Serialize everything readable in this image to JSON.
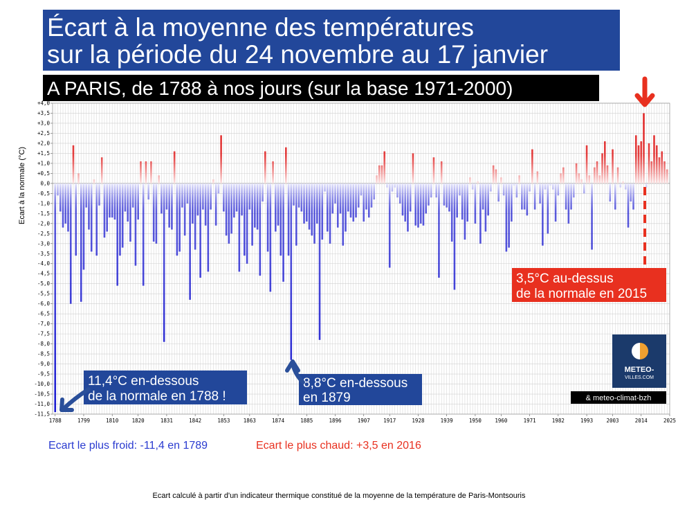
{
  "chart_data": {
    "type": "bar",
    "title": [
      "Écart à la moyenne des températures",
      "sur la période du 24 novembre au 17 janvier"
    ],
    "subtitle": "A PARIS, de 1788 à nos jours (sur la base 1971-2000)",
    "y_label": "Ecart à la normale (°C)",
    "colors": {
      "positive": "#e02020",
      "negative": "#1a1ad0"
    },
    "grid": true,
    "xlim": [
      1787,
      2025
    ],
    "xticks": [
      1788,
      1799,
      1810,
      1820,
      1831,
      1842,
      1853,
      1863,
      1874,
      1885,
      1896,
      1907,
      1917,
      1928,
      1939,
      1950,
      1960,
      1971,
      1982,
      1993,
      2003,
      2014,
      2025
    ],
    "ylim": [
      -11.5,
      4
    ],
    "yticks": [
      {
        "value": 4,
        "label": "+4,0"
      },
      {
        "value": 3.5,
        "label": "+3,5"
      },
      {
        "value": 3,
        "label": "+3,0"
      },
      {
        "value": 2.5,
        "label": "+2,5"
      },
      {
        "value": 2,
        "label": "+2,0"
      },
      {
        "value": 1.5,
        "label": "+1,5"
      },
      {
        "value": 1,
        "label": "+1,0"
      },
      {
        "value": 0.5,
        "label": "+0,5"
      },
      {
        "value": 0,
        "label": "0,0"
      },
      {
        "value": -0.5,
        "label": "-0,5"
      },
      {
        "value": -1,
        "label": "-1,0"
      },
      {
        "value": -1.5,
        "label": "-1,5"
      },
      {
        "value": -2,
        "label": "-2,0"
      },
      {
        "value": -2.5,
        "label": "-2,5"
      },
      {
        "value": -3,
        "label": "-3,0"
      },
      {
        "value": -3.5,
        "label": "-3,5"
      },
      {
        "value": -4,
        "label": "-4,0"
      },
      {
        "value": -4.5,
        "label": "-4,5"
      },
      {
        "value": -5,
        "label": "-5,0"
      },
      {
        "value": -5.5,
        "label": "-5,5"
      },
      {
        "value": -6,
        "label": "-6,0"
      },
      {
        "value": -6.5,
        "label": "-6,5"
      },
      {
        "value": -7,
        "label": "-7,0"
      },
      {
        "value": -7.5,
        "label": "-7,5"
      },
      {
        "value": -8,
        "label": "-8,0"
      },
      {
        "value": -8.5,
        "label": "-8,5"
      },
      {
        "value": -9,
        "label": "-9,0"
      },
      {
        "value": -9.5,
        "label": "-9,5"
      },
      {
        "value": -10,
        "label": "-10,0"
      },
      {
        "value": -10.5,
        "label": "-10,5"
      },
      {
        "value": -11,
        "label": "-11,0"
      },
      {
        "value": -11.5,
        "label": "-11,5"
      }
    ],
    "x": [
      1788,
      1789,
      1790,
      1791,
      1792,
      1793,
      1794,
      1795,
      1796,
      1797,
      1798,
      1799,
      1800,
      1801,
      1802,
      1803,
      1804,
      1805,
      1806,
      1807,
      1808,
      1809,
      1810,
      1811,
      1812,
      1813,
      1814,
      1815,
      1816,
      1817,
      1818,
      1819,
      1820,
      1821,
      1822,
      1823,
      1824,
      1825,
      1826,
      1827,
      1828,
      1829,
      1830,
      1831,
      1832,
      1833,
      1834,
      1835,
      1836,
      1837,
      1838,
      1839,
      1840,
      1841,
      1842,
      1843,
      1844,
      1845,
      1846,
      1847,
      1848,
      1849,
      1850,
      1851,
      1852,
      1853,
      1854,
      1855,
      1856,
      1857,
      1858,
      1859,
      1860,
      1861,
      1862,
      1863,
      1864,
      1865,
      1866,
      1867,
      1868,
      1869,
      1870,
      1871,
      1872,
      1873,
      1874,
      1875,
      1876,
      1877,
      1878,
      1879,
      1880,
      1881,
      1882,
      1883,
      1884,
      1885,
      1886,
      1887,
      1888,
      1889,
      1890,
      1891,
      1892,
      1893,
      1894,
      1895,
      1896,
      1897,
      1898,
      1899,
      1900,
      1901,
      1902,
      1903,
      1904,
      1905,
      1906,
      1907,
      1908,
      1909,
      1910,
      1911,
      1912,
      1913,
      1914,
      1915,
      1916,
      1917,
      1918,
      1919,
      1920,
      1921,
      1922,
      1923,
      1924,
      1925,
      1926,
      1927,
      1928,
      1929,
      1930,
      1931,
      1932,
      1933,
      1934,
      1935,
      1936,
      1937,
      1938,
      1939,
      1940,
      1941,
      1942,
      1943,
      1944,
      1945,
      1946,
      1947,
      1948,
      1949,
      1950,
      1951,
      1952,
      1953,
      1954,
      1955,
      1956,
      1957,
      1958,
      1959,
      1960,
      1961,
      1962,
      1963,
      1964,
      1965,
      1966,
      1967,
      1968,
      1969,
      1970,
      1971,
      1972,
      1973,
      1974,
      1975,
      1976,
      1977,
      1978,
      1979,
      1980,
      1981,
      1982,
      1983,
      1984,
      1985,
      1986,
      1987,
      1988,
      1989,
      1990,
      1991,
      1992,
      1993,
      1994,
      1995,
      1996,
      1997,
      1998,
      1999,
      2000,
      2001,
      2002,
      2003,
      2004,
      2005,
      2006,
      2007,
      2008,
      2009,
      2010,
      2011,
      2012,
      2013,
      2014,
      2015,
      2016,
      2017,
      2018,
      2019,
      2020,
      2021,
      2022,
      2023,
      2024
    ],
    "values": [
      -11.4,
      -0.6,
      -1.4,
      -2.2,
      -2.0,
      -2.4,
      -6.0,
      1.9,
      -3.6,
      0.5,
      -5.9,
      -4.3,
      -1.2,
      -2.3,
      -3.4,
      0.2,
      -3.6,
      -1.1,
      1.3,
      -2.7,
      -2.4,
      -1.7,
      -1.7,
      -1.8,
      -5.1,
      -3.6,
      -3.2,
      -1.4,
      -1.9,
      -2.9,
      -1.2,
      -4.1,
      -1.8,
      1.1,
      -5.1,
      1.1,
      -0.8,
      1.1,
      -2.9,
      -3.0,
      0.4,
      -1.5,
      -7.9,
      -1.3,
      -2.2,
      -2.3,
      1.6,
      -3.6,
      -3.4,
      -1.2,
      -2.6,
      -1.0,
      -5.8,
      -2.0,
      -3.3,
      -1.6,
      -4.7,
      -1.3,
      -2.1,
      -4.4,
      -1.3,
      0.2,
      -2.1,
      -0.5,
      2.4,
      -1.4,
      -2.6,
      -3.0,
      -2.5,
      -1.7,
      -1.4,
      -4.4,
      -1.6,
      -3.6,
      -4.0,
      -1.3,
      -3.1,
      -2.2,
      -2.3,
      -4.6,
      -0.9,
      1.6,
      -3.4,
      -5.4,
      1.1,
      -2.4,
      -2.1,
      -3.6,
      -4.9,
      1.8,
      -3.6,
      -8.8,
      -1.1,
      -3.1,
      -1.2,
      -1.4,
      -2.0,
      -1.9,
      -2.3,
      -2.6,
      -3.0,
      -2.0,
      -7.8,
      -2.8,
      -0.4,
      -2.4,
      -3.0,
      -1.5,
      -1.0,
      -2.2,
      -1.5,
      -3.1,
      -2.4,
      -1.4,
      -1.7,
      -1.9,
      -1.7,
      -1.2,
      -0.6,
      -1.9,
      -1.3,
      -1.7,
      -1.2,
      -0.8,
      0.4,
      0.9,
      0.9,
      1.6,
      -0.2,
      -4.2,
      -0.4,
      -0.2,
      -0.7,
      -1.0,
      -1.6,
      -1.9,
      -2.4,
      -1.4,
      1.5,
      -2.1,
      -2.2,
      -2.0,
      -2.1,
      -1.5,
      -1.1,
      -0.7,
      1.3,
      -0.7,
      -4.7,
      1.1,
      -1.1,
      -1.2,
      -1.4,
      -2.9,
      -5.3,
      -1.7,
      -0.6,
      -1.8,
      -2.8,
      -1.9,
      0.3,
      -0.3,
      -2.0,
      0.1,
      -3.0,
      -1.3,
      -2.4,
      -1.6,
      -0.4,
      0.9,
      0.7,
      -0.9,
      0.3,
      -0.6,
      -3.4,
      -3.2,
      -1.9,
      -0.1,
      -0.7,
      0.4,
      -1.3,
      -1.3,
      -1.6,
      -0.4,
      1.7,
      -1.3,
      0.6,
      -1.0,
      -3.1,
      -0.3,
      -2.5,
      -0.1,
      -0.3,
      -1.9,
      -0.6,
      0.5,
      0.8,
      -1.3,
      -2.0,
      -1.3,
      -0.7,
      1.0,
      0.5,
      0.2,
      -0.5,
      1.9,
      0.4,
      -3.3,
      0.8,
      1.1,
      0.4,
      1.5,
      2.1,
      0.9,
      -0.9,
      1.7,
      -1.3,
      0.8,
      -0.2,
      0.1,
      -0.3,
      -2.2,
      -0.9,
      -1.3,
      2.4,
      1.9,
      2.1,
      3.5,
      -0.2,
      2.0,
      1.1,
      2.4,
      1.9,
      1.3,
      1.6,
      1.1,
      0.7
    ],
    "annotations": [
      {
        "lines": [
          "3,5°C au-dessus",
          "de la normale en 2015"
        ]
      },
      {
        "lines": [
          "11,4°C en-dessous",
          "de la normale en 1788 !"
        ]
      },
      {
        "lines": [
          "8,8°C en-dessous",
          "en 1879"
        ]
      }
    ],
    "extremes": [
      "Ecart le plus froid: -11,4 en 1789",
      "Ecart le plus chaud: +3,5 en 2016"
    ],
    "logo": [
      "METEO-",
      "VILLES.COM"
    ],
    "credit": "& meteo-climat-bzh",
    "footer": "Ecart calculé à partir d'un indicateur thermique constitué de la moyenne de la température de Paris-Montsouris"
  }
}
